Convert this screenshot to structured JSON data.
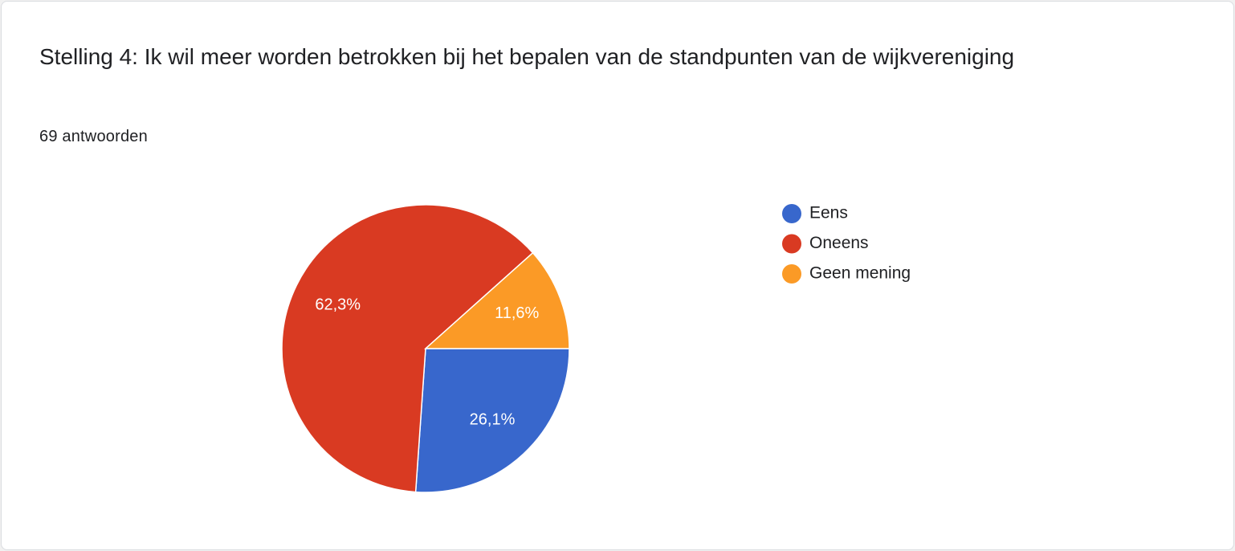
{
  "chart_data": {
    "type": "pie",
    "title": "Stelling 4: Ik wil meer worden betrokken bij het bepalen van de standpunten van de wijkvereniging",
    "subtitle": "69 antwoorden",
    "categories": [
      "Eens",
      "Oneens",
      "Geen mening"
    ],
    "values": [
      26.1,
      62.3,
      11.6
    ],
    "value_labels": [
      "26,1%",
      "62,3%",
      "11,6%"
    ],
    "colors": [
      "#3867cc",
      "#d93a22",
      "#fb9a26"
    ],
    "legend": "right"
  }
}
